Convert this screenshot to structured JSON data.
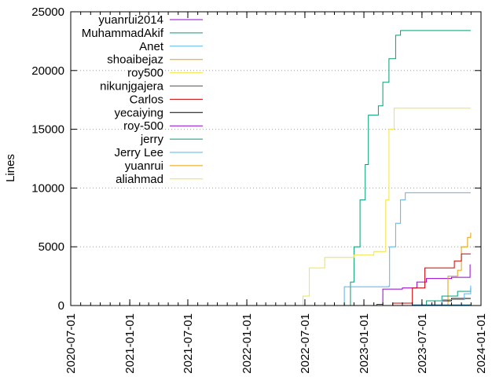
{
  "chart_data": {
    "type": "line",
    "title": "",
    "xlabel": "",
    "ylabel": "Lines",
    "ylim": [
      0,
      25000
    ],
    "xlim": [
      "2020-07-01",
      "2024-01-01"
    ],
    "y_ticks": [
      0,
      5000,
      10000,
      15000,
      20000,
      25000
    ],
    "x_ticks": [
      "2020-07-01",
      "2021-01-01",
      "2021-07-01",
      "2022-01-01",
      "2022-07-01",
      "2023-01-01",
      "2023-07-01",
      "2024-01-01"
    ],
    "grid": "horizontal dotted",
    "legend_position": "top-left",
    "series": [
      {
        "name": "yuanrui2014",
        "color": "#9400d3",
        "points": [
          [
            "2022-12-20",
            0
          ],
          [
            "2023-02-10",
            100
          ],
          [
            "2023-03-01",
            1400
          ],
          [
            "2023-05-01",
            1500
          ],
          [
            "2023-06-15",
            2000
          ],
          [
            "2023-07-15",
            2300
          ],
          [
            "2023-10-01",
            2400
          ],
          [
            "2023-11-25",
            2400
          ],
          [
            "2023-11-28",
            3500
          ]
        ]
      },
      {
        "name": "MuhammadAkif",
        "color": "#009e73",
        "points": [
          [
            "2022-11-01",
            0
          ],
          [
            "2022-11-20",
            2000
          ],
          [
            "2022-12-01",
            5000
          ],
          [
            "2022-12-20",
            9000
          ],
          [
            "2023-01-05",
            12000
          ],
          [
            "2023-01-15",
            16200
          ],
          [
            "2023-02-15",
            17000
          ],
          [
            "2023-03-01",
            19000
          ],
          [
            "2023-03-20",
            21000
          ],
          [
            "2023-04-10",
            23000
          ],
          [
            "2023-04-25",
            23400
          ],
          [
            "2023-11-30",
            23400
          ]
        ]
      },
      {
        "name": "Anet",
        "color": "#56b4e9",
        "points": [
          [
            "2022-10-10",
            0
          ],
          [
            "2022-11-01",
            1600
          ],
          [
            "2023-03-20",
            1650
          ],
          [
            "2023-03-22",
            5000
          ],
          [
            "2023-04-10",
            7000
          ],
          [
            "2023-04-25",
            9000
          ],
          [
            "2023-05-10",
            9600
          ],
          [
            "2023-11-30",
            9600
          ]
        ]
      },
      {
        "name": "shoaibejaz",
        "color": "#e69f00",
        "points": [
          [
            "2023-09-10",
            0
          ],
          [
            "2023-09-20",
            2500
          ],
          [
            "2023-10-20",
            3000
          ],
          [
            "2023-11-01",
            5000
          ],
          [
            "2023-11-20",
            5800
          ],
          [
            "2023-11-30",
            6200
          ]
        ]
      },
      {
        "name": "roy500",
        "color": "#f0e442",
        "points": [
          [
            "2022-06-01",
            0
          ],
          [
            "2022-06-25",
            800
          ],
          [
            "2022-07-15",
            3200
          ],
          [
            "2022-09-01",
            4100
          ],
          [
            "2022-12-01",
            4300
          ],
          [
            "2023-02-01",
            4600
          ],
          [
            "2023-03-10",
            9000
          ],
          [
            "2023-03-20",
            15000
          ],
          [
            "2023-04-05",
            16800
          ],
          [
            "2023-11-30",
            16800
          ]
        ]
      },
      {
        "name": "nikunjgajera",
        "color": "#0072b2",
        "points": [
          [
            "2023-01-01",
            0
          ],
          [
            "2023-06-01",
            50
          ],
          [
            "2023-11-30",
            100
          ]
        ]
      },
      {
        "name": "Carlos",
        "color": "#cc0000",
        "points": [
          [
            "2022-12-01",
            0
          ],
          [
            "2023-04-01",
            200
          ],
          [
            "2023-06-01",
            1500
          ],
          [
            "2023-07-10",
            3200
          ],
          [
            "2023-10-10",
            3800
          ],
          [
            "2023-11-01",
            4400
          ],
          [
            "2023-11-30",
            4400
          ]
        ]
      },
      {
        "name": "yecaiying",
        "color": "#000000",
        "points": [
          [
            "2023-06-10",
            0
          ],
          [
            "2023-08-10",
            400
          ],
          [
            "2023-10-01",
            600
          ],
          [
            "2023-11-30",
            600
          ]
        ]
      },
      {
        "name": "roy-500",
        "color": "#9400d3",
        "points": [
          [
            "2023-05-01",
            0
          ],
          [
            "2023-11-30",
            50
          ]
        ]
      },
      {
        "name": "jerry",
        "color": "#009e73",
        "points": [
          [
            "2023-06-01",
            0
          ],
          [
            "2023-07-15",
            400
          ],
          [
            "2023-09-01",
            800
          ],
          [
            "2023-10-20",
            1200
          ],
          [
            "2023-11-30",
            1500
          ]
        ]
      },
      {
        "name": "Jerry Lee",
        "color": "#56b4e9",
        "points": [
          [
            "2023-06-15",
            0
          ],
          [
            "2023-09-01",
            500
          ],
          [
            "2023-11-10",
            1000
          ],
          [
            "2023-11-30",
            1700
          ]
        ]
      },
      {
        "name": "yuanrui",
        "color": "#e69f00",
        "points": [
          [
            "2023-02-01",
            0
          ],
          [
            "2023-11-30",
            50
          ]
        ]
      },
      {
        "name": "aliahmad",
        "color": "#f0e442",
        "points": [
          [
            "2023-08-01",
            0
          ],
          [
            "2023-11-30",
            50
          ]
        ]
      }
    ]
  }
}
